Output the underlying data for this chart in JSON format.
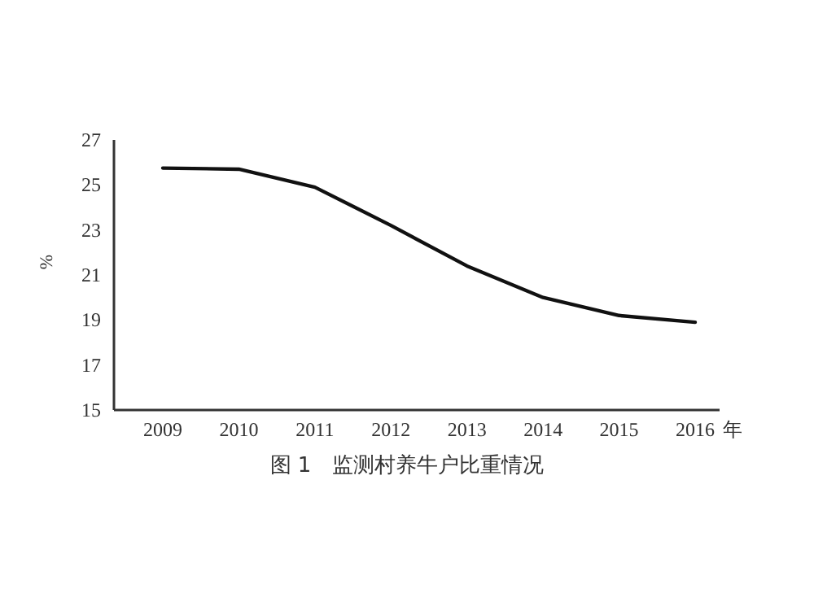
{
  "chart_data": {
    "type": "line",
    "categories": [
      "2009",
      "2010",
      "2011",
      "2012",
      "2013",
      "2014",
      "2015",
      "2016"
    ],
    "series": [
      {
        "color": "#111111",
        "values": [
          25.75,
          25.7,
          24.9,
          23.2,
          21.4,
          20.0,
          19.2,
          18.9
        ]
      }
    ],
    "ylim": [
      15,
      27
    ],
    "yticks": [
      15,
      17,
      19,
      21,
      23,
      25,
      27
    ],
    "ylabel": "%",
    "xlabel": "年",
    "annotations": [
      "图 1　监测村养牛户比重情况"
    ],
    "grid": false,
    "marker": "none",
    "line_style": "solid"
  }
}
